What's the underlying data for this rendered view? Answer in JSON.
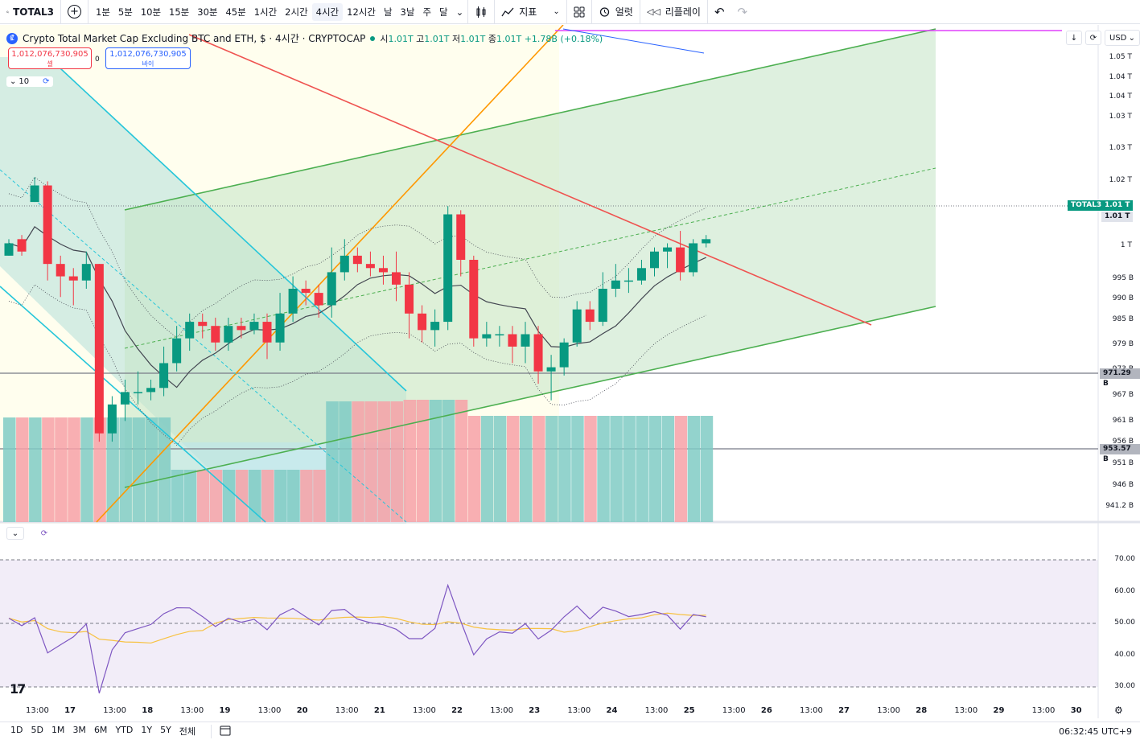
{
  "toolbar": {
    "symbol": "TOTAL3",
    "intervals": [
      "1분",
      "5분",
      "10분",
      "15분",
      "30분",
      "45분",
      "1시간",
      "2시간",
      "4시간",
      "12시간",
      "날",
      "3날",
      "주",
      "달"
    ],
    "active_interval": "4시간",
    "indicators_label": "지표",
    "alert_label": "얼럿",
    "replay_label": "리플레이"
  },
  "legend": {
    "title": "Crypto Total Market Cap Excluding BTC and ETH, $ · 4시간 · CRYPTOCAP",
    "open_label": "시",
    "open": "1.01T",
    "high_label": "고",
    "high": "1.01T",
    "low_label": "저",
    "low": "1.01T",
    "close_label": "종",
    "close": "1.01T",
    "change": "+1.78B (+0.18%)"
  },
  "trade": {
    "sell_price": "1,012,076,730,905",
    "sell_label": "셀",
    "buy_price": "1,012,076,730,905",
    "buy_label": "바이",
    "spread": "0"
  },
  "indicator_collapse": {
    "count": "10"
  },
  "currency": "USD",
  "price_axis": [
    "1.05 T",
    "1.04 T",
    "1.04 T",
    "1.03 T",
    "1.03 T",
    "1.02 T",
    "1 T",
    "995 B",
    "990 B",
    "985 B",
    "979 B",
    "973 B",
    "967 B",
    "961 B",
    "956 B",
    "951 B",
    "946 B",
    "941.2 B"
  ],
  "badges": {
    "symbol": "TOTAL3",
    "last": "1.01 T",
    "last2": "1.01 T",
    "level1": "971.29 B",
    "level2": "953.57 B"
  },
  "rsi_axis": [
    "70.00",
    "60.00",
    "50.00",
    "40.00",
    "30.00"
  ],
  "time_axis": [
    "13:00",
    "17",
    "13:00",
    "18",
    "13:00",
    "19",
    "13:00",
    "20",
    "13:00",
    "21",
    "13:00",
    "22",
    "13:00",
    "23",
    "13:00",
    "24",
    "13:00",
    "25",
    "13:00",
    "26",
    "13:00",
    "27",
    "13:00",
    "28",
    "13:00",
    "29",
    "13:00",
    "30"
  ],
  "bottom": {
    "ranges": [
      "1D",
      "5D",
      "1M",
      "3M",
      "6M",
      "YTD",
      "1Y",
      "5Y",
      "전체"
    ],
    "clock": "06:32:45 UTC+9"
  },
  "colors": {
    "up": "#089981",
    "down": "#f23645",
    "rsi": "#7e57c2",
    "rsi_ma": "#f7c242",
    "channel": "#4caf50",
    "red_line": "#ef5350",
    "orange": "#ff9800",
    "teal": "#26c6da"
  },
  "chart_data": {
    "type": "candlestick",
    "title": "Crypto Total Market Cap Excluding BTC and ETH, $ · 4시간 · CRYPTOCAP",
    "yunit": "B",
    "ohlc": [
      [
        1000,
        1003,
        1004,
        1000
      ],
      [
        1004,
        1001,
        1005,
        1000
      ],
      [
        1013,
        1017,
        1019,
        1013
      ],
      [
        1017,
        998,
        1018,
        994
      ],
      [
        998,
        995,
        1000,
        990
      ],
      [
        995,
        994,
        997,
        988
      ],
      [
        994,
        998,
        1001,
        992
      ],
      [
        998,
        957,
        998,
        955
      ],
      [
        957,
        964,
        966,
        955
      ],
      [
        964,
        967,
        970,
        960
      ],
      [
        967,
        967,
        972,
        964
      ],
      [
        967,
        968,
        970,
        965
      ],
      [
        968,
        974,
        978,
        966
      ],
      [
        974,
        980,
        983,
        972
      ],
      [
        980,
        984,
        986,
        977
      ],
      [
        984,
        983,
        986,
        980
      ],
      [
        983,
        979,
        985,
        977
      ],
      [
        979,
        983,
        985,
        977
      ],
      [
        983,
        982,
        985,
        980
      ],
      [
        982,
        984,
        986,
        981
      ],
      [
        984,
        979,
        986,
        975
      ],
      [
        979,
        986,
        991,
        977
      ],
      [
        986,
        992,
        995,
        984
      ],
      [
        992,
        991,
        994,
        988
      ],
      [
        991,
        988,
        993,
        985
      ],
      [
        988,
        996,
        1002,
        985
      ],
      [
        996,
        1000,
        1004,
        994
      ],
      [
        1000,
        998,
        1002,
        996
      ],
      [
        998,
        997,
        1001,
        995
      ],
      [
        997,
        996,
        1000,
        993
      ],
      [
        996,
        993,
        1001,
        989
      ],
      [
        993,
        986,
        996,
        980
      ],
      [
        986,
        982,
        988,
        979
      ],
      [
        982,
        984,
        987,
        978
      ],
      [
        984,
        1010,
        1012,
        982
      ],
      [
        1010,
        999,
        1011,
        995
      ],
      [
        999,
        980,
        1000,
        978
      ],
      [
        980,
        981,
        984,
        978
      ],
      [
        981,
        981,
        983,
        978
      ],
      [
        981,
        978,
        983,
        974
      ],
      [
        978,
        981,
        984,
        974
      ],
      [
        981,
        972,
        983,
        969
      ],
      [
        972,
        973,
        976,
        965
      ],
      [
        973,
        979,
        980,
        971
      ],
      [
        979,
        987,
        989,
        978
      ],
      [
        987,
        984,
        989,
        982
      ],
      [
        984,
        992,
        996,
        983
      ],
      [
        992,
        994,
        998,
        990
      ],
      [
        994,
        994,
        997,
        991
      ],
      [
        994,
        997,
        999,
        993
      ],
      [
        997,
        1001,
        1002,
        995
      ],
      [
        1001,
        1002,
        1003,
        997
      ],
      [
        1002,
        996,
        1006,
        994
      ],
      [
        996,
        1003,
        1004,
        995
      ],
      [
        1003,
        1004,
        1005,
        1002
      ]
    ],
    "xlabel": "",
    "ylabel": ""
  }
}
